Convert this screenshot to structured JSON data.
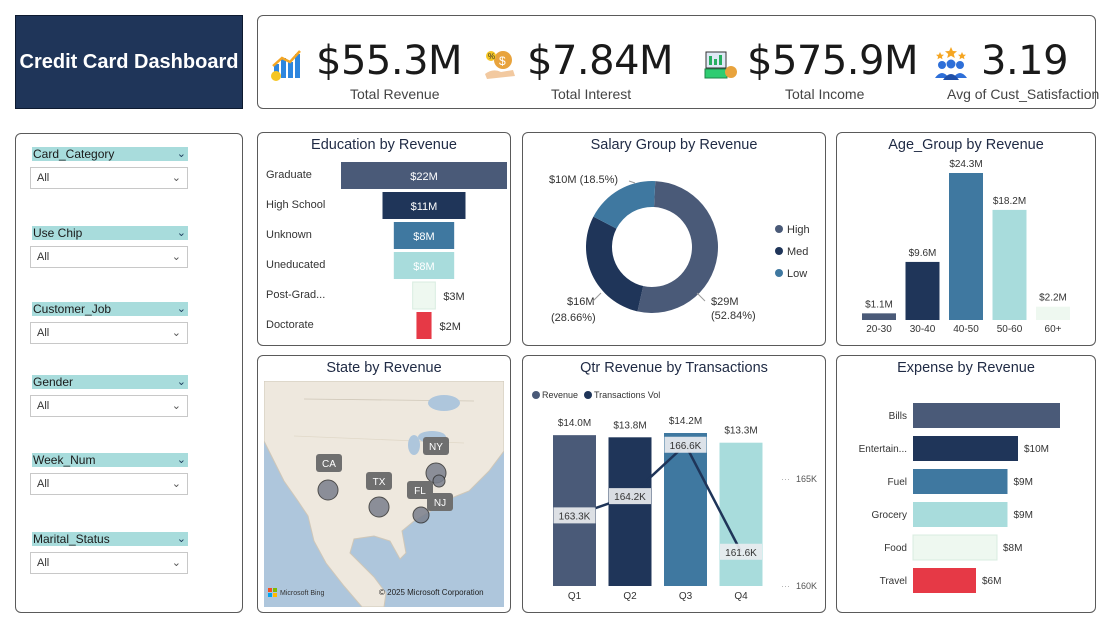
{
  "title": "Credit Card Dashboard",
  "kpis": [
    {
      "value": "$55.3M",
      "label": "Total Revenue",
      "icon": "bar-chart-icon"
    },
    {
      "value": "$7.84M",
      "label": "Total Interest",
      "icon": "money-hand-icon"
    },
    {
      "value": "$575.9M",
      "label": "Total Income",
      "icon": "cash-stack-icon"
    },
    {
      "value": "3.19",
      "label": "Avg of Cust_Satisfaction",
      "icon": "people-stars-icon"
    }
  ],
  "slicers": [
    {
      "label": "Card_Category",
      "value": "All"
    },
    {
      "label": "Use Chip",
      "value": "All"
    },
    {
      "label": "Customer_Job",
      "value": "All"
    },
    {
      "label": "Gender",
      "value": "All"
    },
    {
      "label": "Week_Num",
      "value": "All"
    },
    {
      "label": "Marital_Status",
      "value": "All"
    }
  ],
  "education": {
    "title": "Education by Revenue",
    "type": "funnel",
    "rows": [
      {
        "label": "Graduate",
        "value": 22,
        "display": "$22M",
        "color": "#4a5a78"
      },
      {
        "label": "High School",
        "value": 11,
        "display": "$11M",
        "color": "#1f3559"
      },
      {
        "label": "Unknown",
        "value": 8,
        "display": "$8M",
        "color": "#3f78a0"
      },
      {
        "label": "Uneducated",
        "value": 8,
        "display": "$8M",
        "color": "#a8dcdc"
      },
      {
        "label": "Post-Grad...",
        "value": 3,
        "display": "$3M",
        "color": "#eef8f0"
      },
      {
        "label": "Doctorate",
        "value": 2,
        "display": "$2M",
        "color": "#e63946"
      }
    ]
  },
  "salary": {
    "title": "Salary Group by Revenue",
    "type": "donut",
    "slices": [
      {
        "name": "High",
        "value": 29,
        "pct": 52.84,
        "color": "#4a5a78",
        "label1": "$29M",
        "label2": "(52.84%)"
      },
      {
        "name": "Med",
        "value": 16,
        "pct": 28.66,
        "color": "#1f3559",
        "label1": "$16M",
        "label2": "(28.66%)"
      },
      {
        "name": "Low",
        "value": 10,
        "pct": 18.5,
        "color": "#3f78a0",
        "label1": "$10M (18.5%)",
        "label2": ""
      }
    ]
  },
  "age": {
    "title": "Age_Group by Revenue",
    "type": "bar",
    "categories": [
      "20-30",
      "30-40",
      "40-50",
      "50-60",
      "60+"
    ],
    "values": [
      1.1,
      9.6,
      24.3,
      18.2,
      2.2
    ],
    "labels": [
      "$1.1M",
      "$9.6M",
      "$24.3M",
      "$18.2M",
      "$2.2M"
    ],
    "colors": [
      "#4a5a78",
      "#1f3559",
      "#3f78a0",
      "#a8dcdc",
      "#eef8f0"
    ]
  },
  "state": {
    "title": "State by Revenue",
    "markers": [
      "CA",
      "TX",
      "NY",
      "FL",
      "NJ"
    ],
    "brand": "Microsoft Bing",
    "copyright": "© 2025 Microsoft Corporation"
  },
  "qtr": {
    "title": "Qtr Revenue by Transactions",
    "type": "bar+line",
    "legend": [
      "Revenue",
      "Transactions Vol"
    ],
    "categories": [
      "Q1",
      "Q2",
      "Q3",
      "Q4"
    ],
    "revenue": [
      14.0,
      13.8,
      14.2,
      13.3
    ],
    "revenue_labels": [
      "$14.0M",
      "$13.8M",
      "$14.2M",
      "$13.3M"
    ],
    "transactions": [
      163.3,
      164.2,
      166.6,
      161.6
    ],
    "transaction_labels": [
      "163.3K",
      "164.2K",
      "166.6K",
      "161.6K"
    ],
    "y2_ticks": [
      "165K",
      "160K"
    ],
    "colors": [
      "#4a5a78",
      "#1f3559",
      "#3f78a0",
      "#a8dcdc"
    ]
  },
  "expense": {
    "title": "Expense by Revenue",
    "type": "hbar",
    "categories": [
      "Bills",
      "Entertain...",
      "Fuel",
      "Grocery",
      "Food",
      "Travel"
    ],
    "values": [
      14,
      10,
      9,
      9,
      8,
      6
    ],
    "labels": [
      "",
      "$10M",
      "$9M",
      "$9M",
      "$8M",
      "$6M"
    ],
    "colors": [
      "#4a5a78",
      "#1f3559",
      "#3f78a0",
      "#a8dcdc",
      "#eef8f0",
      "#e63946"
    ]
  },
  "chart_data": [
    {
      "type": "bar",
      "title": "Education by Revenue",
      "categories": [
        "Graduate",
        "High School",
        "Unknown",
        "Uneducated",
        "Post-Grad...",
        "Doctorate"
      ],
      "values": [
        22,
        11,
        8,
        8,
        3,
        2
      ]
    },
    {
      "type": "pie",
      "title": "Salary Group by Revenue",
      "categories": [
        "High",
        "Med",
        "Low"
      ],
      "values": [
        29,
        16,
        10
      ]
    },
    {
      "type": "bar",
      "title": "Age_Group by Revenue",
      "categories": [
        "20-30",
        "30-40",
        "40-50",
        "50-60",
        "60+"
      ],
      "values": [
        1.1,
        9.6,
        24.3,
        18.2,
        2.2
      ]
    },
    {
      "type": "bar",
      "title": "Qtr Revenue by Transactions",
      "categories": [
        "Q1",
        "Q2",
        "Q3",
        "Q4"
      ],
      "series": [
        {
          "name": "Revenue",
          "values": [
            14.0,
            13.8,
            14.2,
            13.3
          ]
        },
        {
          "name": "Transactions Vol",
          "values": [
            163.3,
            164.2,
            166.6,
            161.6
          ]
        }
      ]
    },
    {
      "type": "bar",
      "title": "Expense by Revenue",
      "categories": [
        "Bills",
        "Entertain...",
        "Fuel",
        "Grocery",
        "Food",
        "Travel"
      ],
      "values": [
        14,
        10,
        9,
        9,
        8,
        6
      ]
    }
  ]
}
